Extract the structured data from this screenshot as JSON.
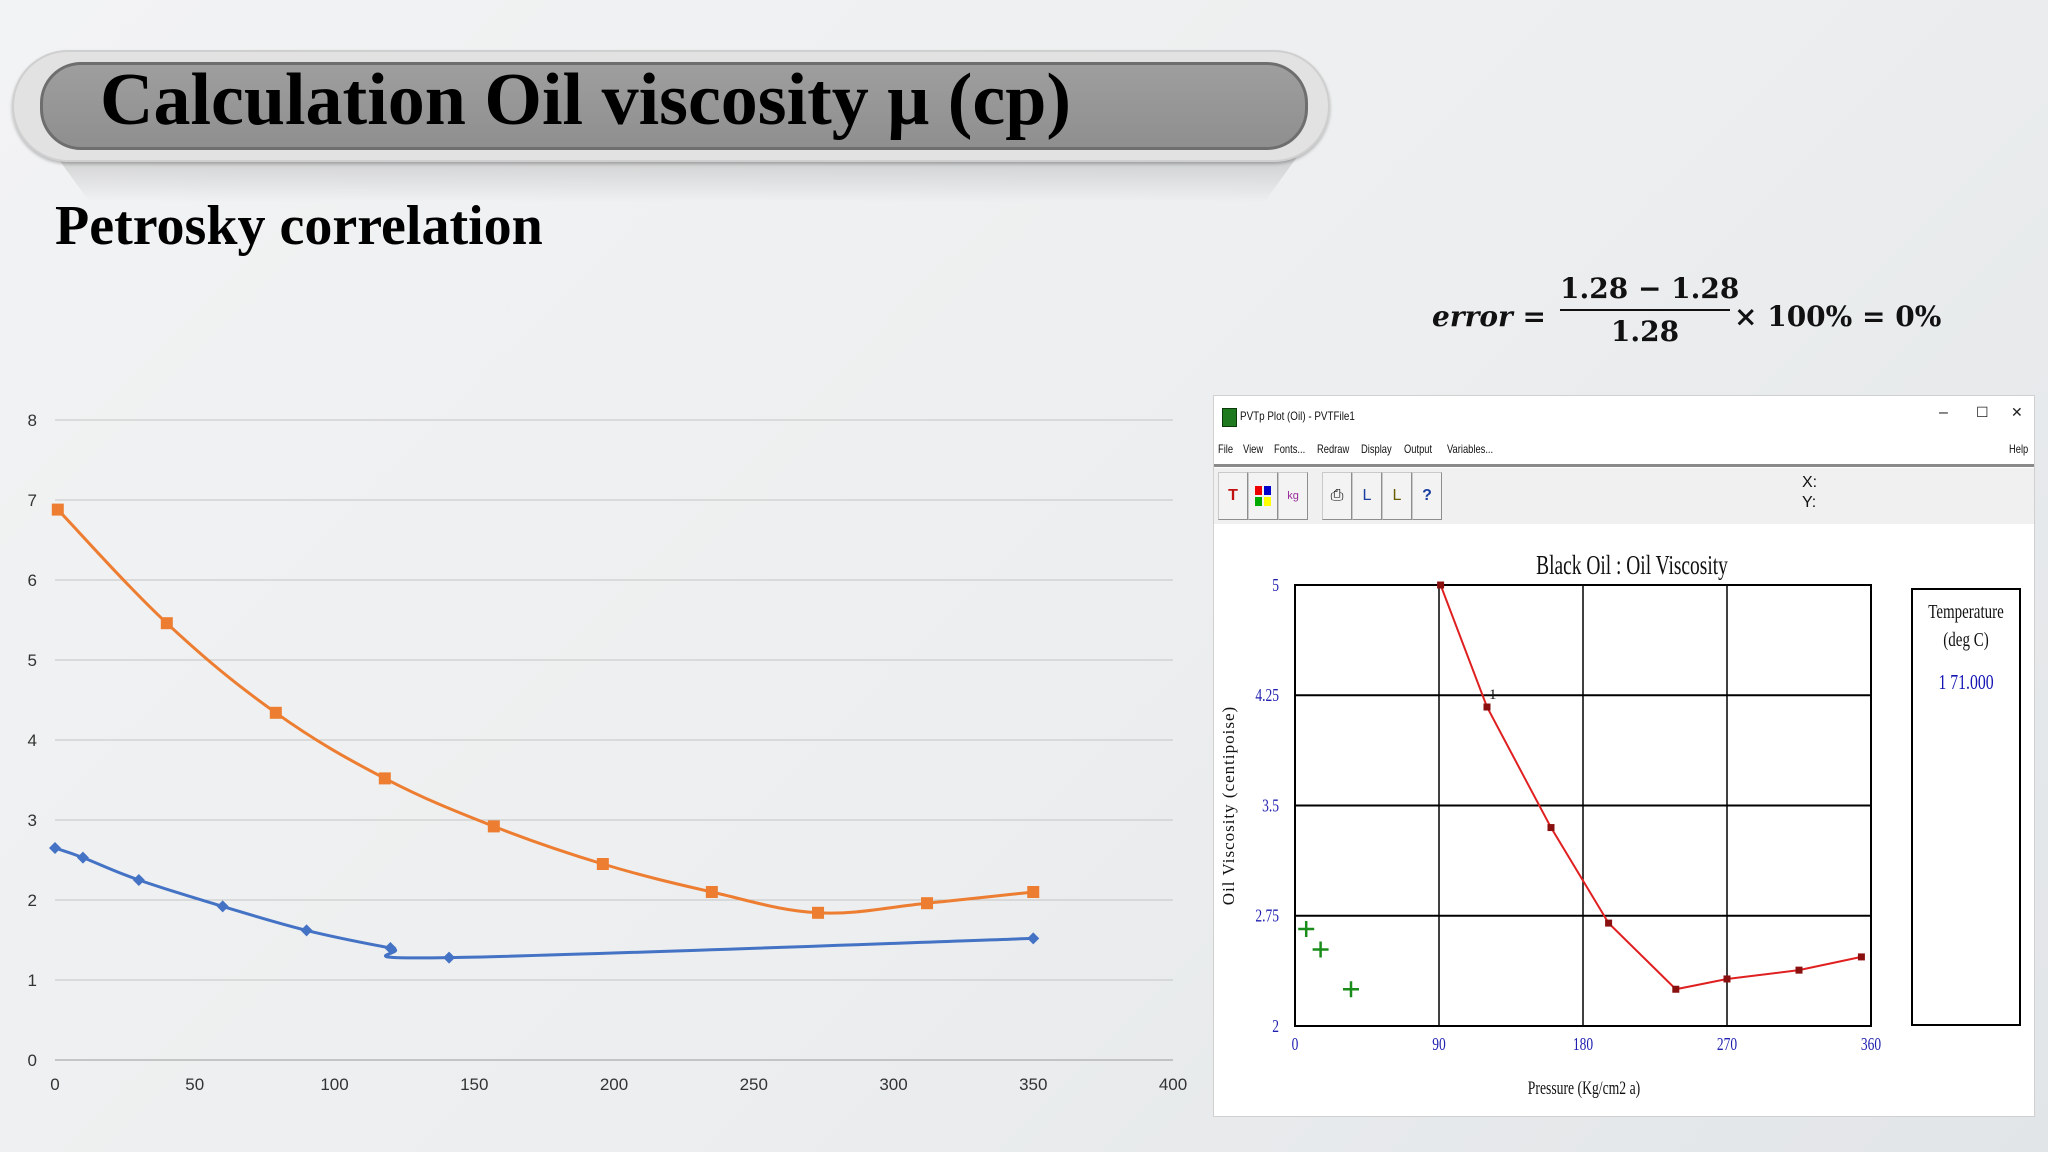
{
  "slide": {
    "title": "Calculation Oil viscosity μ (cp)",
    "subtitle": "Petrosky correlation"
  },
  "formula": {
    "lhs": "error =",
    "numerator": "1.28 − 1.28",
    "denominator": "1.28",
    "rhs": "× 100% = 0%"
  },
  "chart_data": [
    {
      "type": "line",
      "x_ticks": [
        "0",
        "50",
        "100",
        "150",
        "200",
        "250",
        "300",
        "350",
        "400"
      ],
      "y_ticks": [
        "0",
        "1",
        "2",
        "3",
        "4",
        "5",
        "6",
        "7",
        "8"
      ],
      "xlim": [
        0,
        400
      ],
      "ylim": [
        0,
        8
      ],
      "grid": "horizontal",
      "series": [
        {
          "color": "#4472c4",
          "marker": "diamond",
          "points": [
            [
              0,
              2.65
            ],
            [
              10,
              2.53
            ],
            [
              30,
              2.25
            ],
            [
              60,
              1.92
            ],
            [
              90,
              1.62
            ],
            [
              120,
              1.4
            ],
            [
              141,
              1.28
            ],
            [
              350,
              1.52
            ]
          ]
        },
        {
          "color": "#ed7d31",
          "marker": "square",
          "points": [
            [
              1,
              6.88
            ],
            [
              40,
              5.46
            ],
            [
              79,
              4.34
            ],
            [
              118,
              3.52
            ],
            [
              157,
              2.92
            ],
            [
              196,
              2.45
            ],
            [
              235,
              2.1
            ],
            [
              273,
              1.84
            ],
            [
              312,
              1.96
            ],
            [
              350,
              2.1
            ]
          ]
        }
      ]
    },
    {
      "type": "line",
      "title": "Black Oil : Oil Viscosity",
      "xlabel": "Pressure (Kg/cm2 a)",
      "ylabel": "Oil Viscosity (centipoise)",
      "x_ticks": [
        "0",
        "90",
        "180",
        "270",
        "360"
      ],
      "y_ticks": [
        "2",
        "2.75",
        "3.5",
        "4.25",
        "5"
      ],
      "xlim": [
        0,
        360
      ],
      "ylim": [
        2,
        5
      ],
      "grid": "major",
      "series": [
        {
          "color": "#e02020",
          "points": [
            [
              91,
              5.0
            ],
            [
              120,
              4.17
            ],
            [
              160,
              3.35
            ],
            [
              196,
              2.7
            ],
            [
              238,
              2.25
            ],
            [
              270,
              2.32
            ],
            [
              315,
              2.38
            ],
            [
              354,
              2.47
            ]
          ],
          "point_label": "1"
        },
        {
          "color": "#1a8c1a",
          "marker": "plus",
          "points": [
            [
              7,
              2.66
            ],
            [
              16,
              2.52
            ],
            [
              35,
              2.25
            ]
          ]
        }
      ]
    }
  ],
  "window": {
    "title": "PVTp Plot (Oil) - PVTFile1",
    "controls": {
      "minimize": "–",
      "maximize": "☐",
      "close": "✕"
    },
    "menu": [
      "File",
      "View",
      "Fonts...",
      "Redraw",
      "Display",
      "Output",
      "Variables..."
    ],
    "help": "Help",
    "toolbar_icons": [
      "text-tool-icon",
      "color-palette-icon",
      "units-icon",
      "print-icon",
      "axes-scale-icon",
      "axis-icon",
      "help-icon"
    ],
    "cursor_x_label": "X:",
    "cursor_y_label": "Y:",
    "legend": {
      "title": "Temperature (deg C)",
      "value": "1 71.000"
    }
  }
}
